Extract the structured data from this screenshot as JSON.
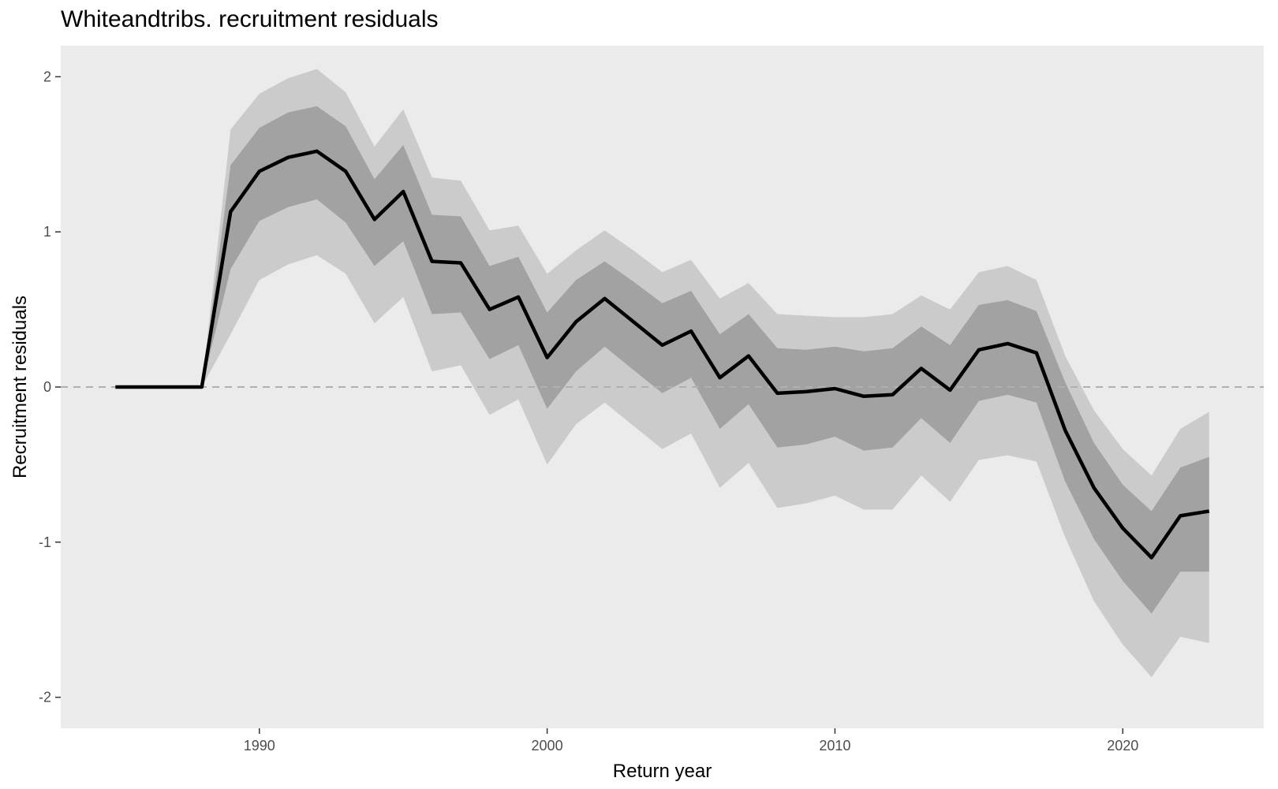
{
  "chart_data": {
    "type": "line",
    "title": "Whiteandtribs. recruitment residuals",
    "xlabel": "Return year",
    "ylabel": "Recruitment residuals",
    "xlim": [
      1983.1,
      2024.9
    ],
    "ylim": [
      -2.2,
      2.2
    ],
    "x_ticks": [
      1990,
      2000,
      2010,
      2020
    ],
    "y_ticks": [
      -2,
      -1,
      0,
      1,
      2
    ],
    "grid": false,
    "reference_line": {
      "y": 0,
      "style": "dashed"
    },
    "x": [
      1985,
      1986,
      1987,
      1988,
      1989,
      1990,
      1991,
      1992,
      1993,
      1994,
      1995,
      1996,
      1997,
      1998,
      1999,
      2000,
      2001,
      2002,
      2003,
      2004,
      2005,
      2006,
      2007,
      2008,
      2009,
      2010,
      2011,
      2012,
      2013,
      2014,
      2015,
      2016,
      2017,
      2018,
      2019,
      2020,
      2021,
      2022,
      2023
    ],
    "series": [
      {
        "role": "median",
        "values": [
          0,
          0,
          0,
          0,
          1.13,
          1.39,
          1.48,
          1.52,
          1.39,
          1.08,
          1.26,
          0.81,
          0.8,
          0.5,
          0.58,
          0.19,
          0.42,
          0.57,
          0.42,
          0.27,
          0.36,
          0.06,
          0.2,
          -0.04,
          -0.03,
          -0.01,
          -0.06,
          -0.05,
          0.12,
          -0.02,
          0.24,
          0.28,
          0.22,
          -0.28,
          -0.65,
          -0.91,
          -1.1,
          -0.83,
          -0.8
        ]
      },
      {
        "role": "inner_interval_lower",
        "values": [
          0,
          0,
          0,
          0,
          0.76,
          1.07,
          1.16,
          1.21,
          1.06,
          0.78,
          0.94,
          0.47,
          0.48,
          0.18,
          0.27,
          -0.14,
          0.1,
          0.26,
          0.11,
          -0.04,
          0.06,
          -0.27,
          -0.11,
          -0.39,
          -0.37,
          -0.32,
          -0.41,
          -0.39,
          -0.2,
          -0.36,
          -0.09,
          -0.05,
          -0.1,
          -0.61,
          -0.98,
          -1.25,
          -1.46,
          -1.19,
          -1.19
        ]
      },
      {
        "role": "inner_interval_upper",
        "values": [
          0,
          0,
          0,
          0,
          1.43,
          1.67,
          1.77,
          1.81,
          1.68,
          1.34,
          1.56,
          1.11,
          1.1,
          0.78,
          0.84,
          0.48,
          0.69,
          0.81,
          0.68,
          0.54,
          0.62,
          0.34,
          0.47,
          0.25,
          0.24,
          0.26,
          0.23,
          0.25,
          0.39,
          0.27,
          0.53,
          0.56,
          0.49,
          0.03,
          -0.36,
          -0.63,
          -0.8,
          -0.52,
          -0.45
        ]
      },
      {
        "role": "outer_interval_lower",
        "values": [
          0,
          0,
          0,
          0,
          0.34,
          0.69,
          0.79,
          0.85,
          0.73,
          0.41,
          0.58,
          0.1,
          0.14,
          -0.18,
          -0.08,
          -0.5,
          -0.24,
          -0.1,
          -0.25,
          -0.4,
          -0.3,
          -0.65,
          -0.49,
          -0.78,
          -0.75,
          -0.7,
          -0.79,
          -0.79,
          -0.57,
          -0.74,
          -0.47,
          -0.44,
          -0.48,
          -0.97,
          -1.38,
          -1.66,
          -1.87,
          -1.61,
          -1.65
        ]
      },
      {
        "role": "outer_interval_upper",
        "values": [
          0,
          0,
          0,
          0,
          1.66,
          1.89,
          1.99,
          2.05,
          1.9,
          1.55,
          1.79,
          1.35,
          1.33,
          1.01,
          1.04,
          0.73,
          0.88,
          1.01,
          0.88,
          0.74,
          0.82,
          0.57,
          0.67,
          0.47,
          0.46,
          0.45,
          0.45,
          0.47,
          0.59,
          0.5,
          0.74,
          0.78,
          0.69,
          0.2,
          -0.15,
          -0.4,
          -0.57,
          -0.27,
          -0.16
        ]
      }
    ],
    "colors": {
      "panel": "#ebebeb",
      "outer_band": "#cbcbcb",
      "inner_band": "#a2a2a2",
      "line": "#000000",
      "zero_line": "#b0b0b0",
      "tick_text": "#4d4d4d"
    }
  }
}
